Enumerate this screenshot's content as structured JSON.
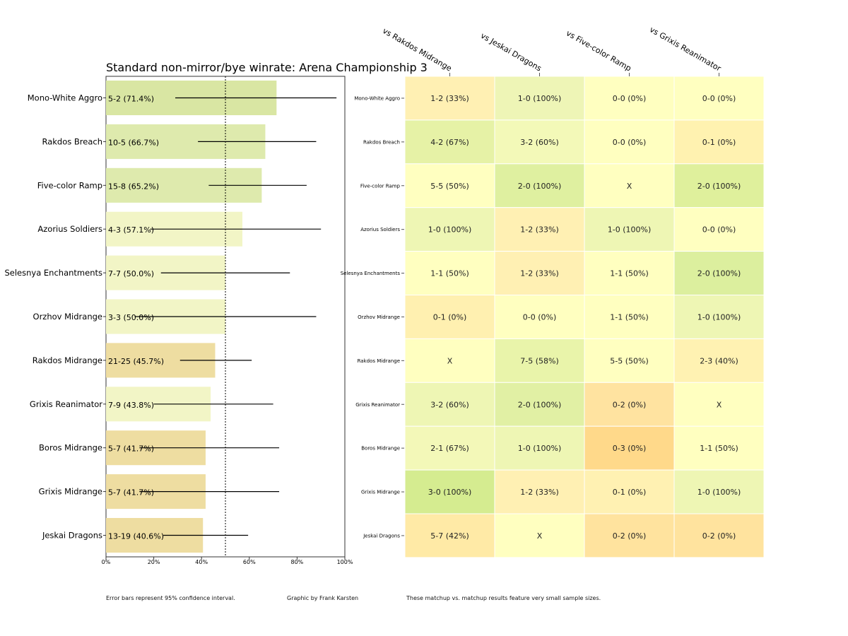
{
  "chart_data": [
    {
      "type": "bar",
      "orientation": "horizontal",
      "title": "Standard non-mirror/bye winrate: Arena Championship 3",
      "xlim": [
        0,
        100
      ],
      "x_ticks": [
        "0%",
        "20%",
        "40%",
        "60%",
        "80%",
        "100%"
      ],
      "reference_line": 50,
      "categories": [
        "Mono-White Aggro",
        "Rakdos Breach",
        "Five-color Ramp",
        "Azorius Soldiers",
        "Selesnya Enchantments",
        "Orzhov Midrange",
        "Rakdos Midrange",
        "Grixis Reanimator",
        "Boros Midrange",
        "Grixis Midrange",
        "Jeskai Dragons"
      ],
      "values": [
        71.4,
        66.7,
        65.2,
        57.1,
        50.0,
        50.0,
        45.7,
        43.8,
        41.7,
        41.7,
        40.6
      ],
      "bar_labels": [
        "5-2 (71.4%)",
        "10-5 (66.7%)",
        "15-8 (65.2%)",
        "4-3 (57.1%)",
        "7-7 (50.0%)",
        "3-3 (50.0%)",
        "21-25 (45.7%)",
        "7-9 (43.8%)",
        "5-7 (41.7%)",
        "5-7 (41.7%)",
        "13-19 (40.6%)"
      ],
      "ci_low": [
        29,
        38.5,
        43,
        18.5,
        23,
        12,
        31,
        20,
        14,
        14,
        24
      ],
      "ci_high": [
        96.5,
        88,
        84,
        90,
        77,
        88,
        61,
        70,
        72.5,
        72.5,
        59.5
      ],
      "bar_colors": [
        "#d9e6a3",
        "#deea ad",
        "#deeaad",
        "#f2f5c6",
        "#f2f5c6",
        "#f2f5c6",
        "#eedda1",
        "#f2f5c6",
        "#eedda1",
        "#eedda1",
        "#eedda1"
      ]
    },
    {
      "type": "heatmap",
      "columns": [
        "vs Rakdos Midrange",
        "vs Jeskai Dragons",
        "vs Five-color Ramp",
        "vs Grixis Reanimator"
      ],
      "rows": [
        "Mono-White Aggro",
        "Rakdos Breach",
        "Five-color Ramp",
        "Azorius Soldiers",
        "Selesnya Enchantments",
        "Orzhov Midrange",
        "Rakdos Midrange",
        "Grixis Reanimator",
        "Boros Midrange",
        "Grixis Midrange",
        "Jeskai Dragons"
      ],
      "cells": [
        [
          "1-2 (33%)",
          "1-0 (100%)",
          "0-0 (0%)",
          "0-0 (0%)"
        ],
        [
          "4-2 (67%)",
          "3-2 (60%)",
          "0-0 (0%)",
          "0-1 (0%)"
        ],
        [
          "5-5 (50%)",
          "2-0 (100%)",
          "X",
          "2-0 (100%)"
        ],
        [
          "1-0 (100%)",
          "1-2 (33%)",
          "1-0 (100%)",
          "0-0 (0%)"
        ],
        [
          "1-1 (50%)",
          "1-2 (33%)",
          "1-1 (50%)",
          "2-0 (100%)"
        ],
        [
          "0-1 (0%)",
          "0-0 (0%)",
          "1-1 (50%)",
          "1-0 (100%)"
        ],
        [
          "X",
          "7-5 (58%)",
          "5-5 (50%)",
          "2-3 (40%)"
        ],
        [
          "3-2 (60%)",
          "2-0 (100%)",
          "0-2 (0%)",
          "X"
        ],
        [
          "2-1 (67%)",
          "1-0 (100%)",
          "0-3 (0%)",
          "1-1 (50%)"
        ],
        [
          "3-0 (100%)",
          "1-2 (33%)",
          "0-1 (0%)",
          "1-0 (100%)"
        ],
        [
          "5-7 (42%)",
          "X",
          "0-2 (0%)",
          "0-2 (0%)"
        ]
      ],
      "cell_colors": [
        [
          "#fff0b3",
          "#eef5b6",
          "#ffffc0",
          "#ffffc0"
        ],
        [
          "#e6f2a6",
          "#f3f9b8",
          "#ffffc0",
          "#fff2b0"
        ],
        [
          "#ffffc0",
          "#dff0a0",
          "#ffffc0",
          "#dff09c"
        ],
        [
          "#eef6b4",
          "#fff0b3",
          "#eef6b4",
          "#ffffc0"
        ],
        [
          "#ffffc0",
          "#fff0b3",
          "#ffffc0",
          "#dcef9e"
        ],
        [
          "#fff0b0",
          "#ffffc0",
          "#ffffc0",
          "#eef6b4"
        ],
        [
          "#ffffc0",
          "#e9f4aa",
          "#ffffc0",
          "#fff2b2"
        ],
        [
          "#eef6b4",
          "#e1f0a4",
          "#ffe3a0",
          "#ffffc0"
        ],
        [
          "#f3f8b8",
          "#eef6b4",
          "#ffd98a",
          "#ffffc0"
        ],
        [
          "#d5ec90",
          "#fff0b3",
          "#fff1b2",
          "#eef6b4"
        ],
        [
          "#ffeaa6",
          "#ffffc0",
          "#ffe39e",
          "#ffe39e"
        ]
      ]
    }
  ],
  "footer": {
    "error_note": "Error bars represent 95% confidence interval.",
    "credit": "Graphic by Frank Karsten",
    "sample_note": "These matchup vs. matchup results feature very small sample sizes."
  }
}
